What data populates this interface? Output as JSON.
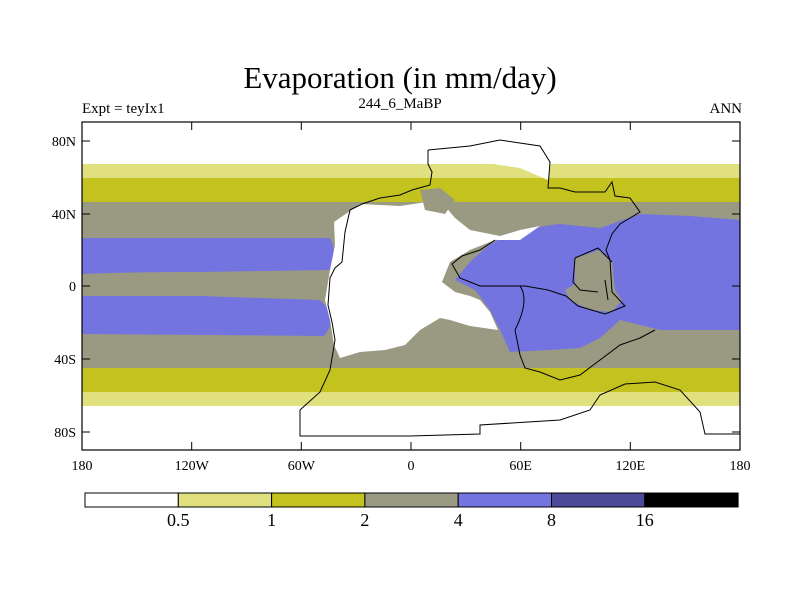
{
  "title": "Evaporation (in mm/day)",
  "left_label": "Expt = teyIx1",
  "center_label": "244_6_MaBP",
  "right_label": "ANN",
  "axes": {
    "lon_ticks": [
      "180",
      "120W",
      "60W",
      "0",
      "60E",
      "120E",
      "180"
    ],
    "lat_ticks": [
      "80N",
      "40N",
      "0",
      "40S",
      "80S"
    ]
  },
  "colorbar": {
    "colors": [
      "#ffffff",
      "#e1e07e",
      "#c4c21e",
      "#9a9a82",
      "#7474e0",
      "#4a4a98",
      "#000000"
    ],
    "labels": [
      "0.5",
      "1",
      "2",
      "4",
      "8",
      "16"
    ]
  }
}
